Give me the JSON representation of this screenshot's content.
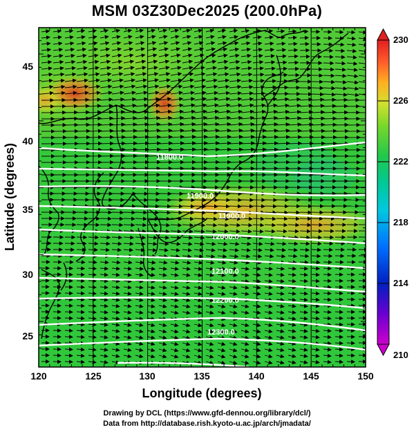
{
  "title": "MSM 03Z30Dec2025 (200.0hPa)",
  "axes": {
    "x_label": "Longitude (degrees)",
    "y_label": "Latitude  (degrees)",
    "x_ticks": [
      "120",
      "125",
      "130",
      "135",
      "140",
      "145",
      "150"
    ],
    "y_ticks": [
      "25",
      "30",
      "35",
      "40",
      "45"
    ]
  },
  "colorbar": {
    "labels": [
      "230",
      "226",
      "222",
      "218",
      "214",
      "210"
    ],
    "colors": [
      "#cc00cc",
      "#6a00d0",
      "#0020c0",
      "#0070ff",
      "#00c8e0",
      "#00c896",
      "#22c84a",
      "#7ad82a",
      "#d0e030",
      "#ffb020",
      "#ff5a2a",
      "#e02020"
    ]
  },
  "contours": [
    {
      "label": "11800.0"
    },
    {
      "label": "11900.0"
    },
    {
      "label": "11900.0"
    },
    {
      "label": "12000.0"
    },
    {
      "label": "12100.0"
    },
    {
      "label": "12200.0"
    },
    {
      "label": "12300.0"
    }
  ],
  "credits": {
    "line1": "Drawing by DCL (https://www.gfd-dennou.org/library/dcl/)",
    "line2": "Data from http://database.rish.kyoto-u.ac.jp/arch/jmadata/"
  },
  "colors": {
    "field_base": "#34c83a",
    "warm": "#e8502a",
    "contour": "#ffffff",
    "coast": "#000000"
  }
}
